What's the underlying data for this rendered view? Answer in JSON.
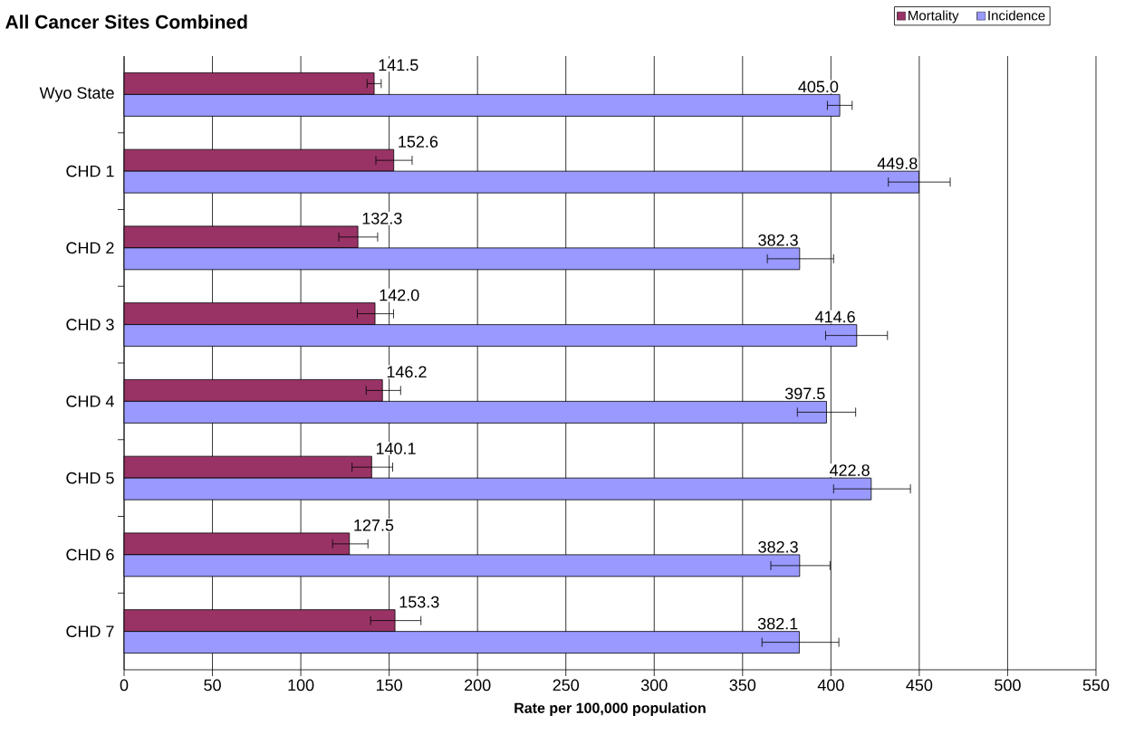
{
  "chart_data": {
    "type": "bar",
    "orientation": "horizontal",
    "title": "All Cancer Sites Combined",
    "xlabel": "Rate per 100,000 population",
    "categories": [
      "Wyo State",
      "CHD 1",
      "CHD 2",
      "CHD 3",
      "CHD 4",
      "CHD 5",
      "CHD 6",
      "CHD 7"
    ],
    "series": [
      {
        "name": "Mortality",
        "color": "#993366",
        "values": [
          141.5,
          152.6,
          132.3,
          142.0,
          146.2,
          140.1,
          127.5,
          153.3
        ],
        "errors": [
          [
            137.5,
            145.5
          ],
          [
            142.5,
            163.0
          ],
          [
            121.5,
            143.5
          ],
          [
            132.0,
            152.5
          ],
          [
            137.0,
            156.5
          ],
          [
            129.0,
            152.0
          ],
          [
            118.0,
            138.0
          ],
          [
            139.5,
            168.0
          ]
        ],
        "value_labels": [
          "141.5",
          "152.6",
          "132.3",
          "142.0",
          "146.2",
          "140.1",
          "127.5",
          "153.3"
        ]
      },
      {
        "name": "Incidence",
        "color": "#9999ff",
        "values": [
          405.0,
          449.8,
          382.3,
          414.6,
          397.5,
          422.8,
          382.3,
          382.1
        ],
        "errors": [
          [
            398.0,
            412.0
          ],
          [
            432.5,
            467.5
          ],
          [
            364.0,
            401.5
          ],
          [
            397.0,
            432.0
          ],
          [
            381.0,
            414.0
          ],
          [
            401.5,
            445.0
          ],
          [
            366.0,
            399.5
          ],
          [
            361.0,
            404.5
          ]
        ],
        "value_labels": [
          "405.0",
          "449.8",
          "382.3",
          "414.6",
          "397.5",
          "422.8",
          "382.3",
          "382.1"
        ]
      }
    ],
    "xlim": [
      0,
      550
    ],
    "xticks": [
      0,
      50,
      100,
      150,
      200,
      250,
      300,
      350,
      400,
      450,
      500,
      550
    ],
    "grid": "x",
    "legend": "top right"
  }
}
